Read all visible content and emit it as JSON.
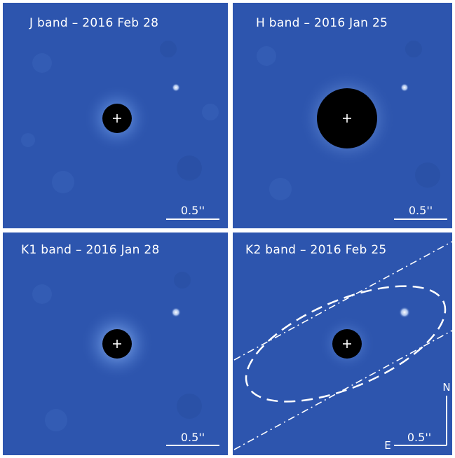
{
  "colors": {
    "background": "#2d55ae",
    "mask": "#000000",
    "annotation": "#ffffff",
    "frame": "#ffffff"
  },
  "panels": [
    {
      "id": "j",
      "title": "J band – 2016 Feb 28",
      "scale_label": "0.5''"
    },
    {
      "id": "h",
      "title": "H band – 2016 Jan 25",
      "scale_label": "0.5''"
    },
    {
      "id": "k1",
      "title": "K1 band – 2016 Jan 28",
      "scale_label": "0.5''"
    },
    {
      "id": "k2",
      "title": "K2 band – 2016 Feb 25",
      "scale_label": "0.5''",
      "compass": {
        "north": "N",
        "east": "E"
      }
    }
  ]
}
